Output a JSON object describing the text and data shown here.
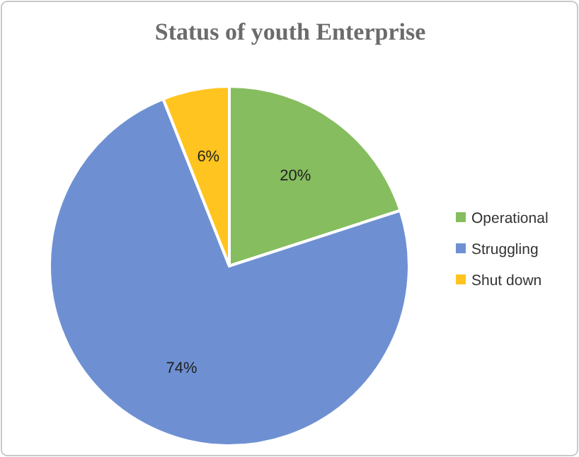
{
  "chart_data": {
    "type": "pie",
    "title": "Status of youth Enterprise",
    "categories": [
      "Operational",
      "Struggling",
      "Shut down"
    ],
    "values": [
      20,
      74,
      6
    ],
    "colors": [
      "#86bd5e",
      "#6e90d3",
      "#ffc41f"
    ],
    "value_labels": [
      "20%",
      "74%",
      "6%"
    ],
    "legend": "right"
  }
}
